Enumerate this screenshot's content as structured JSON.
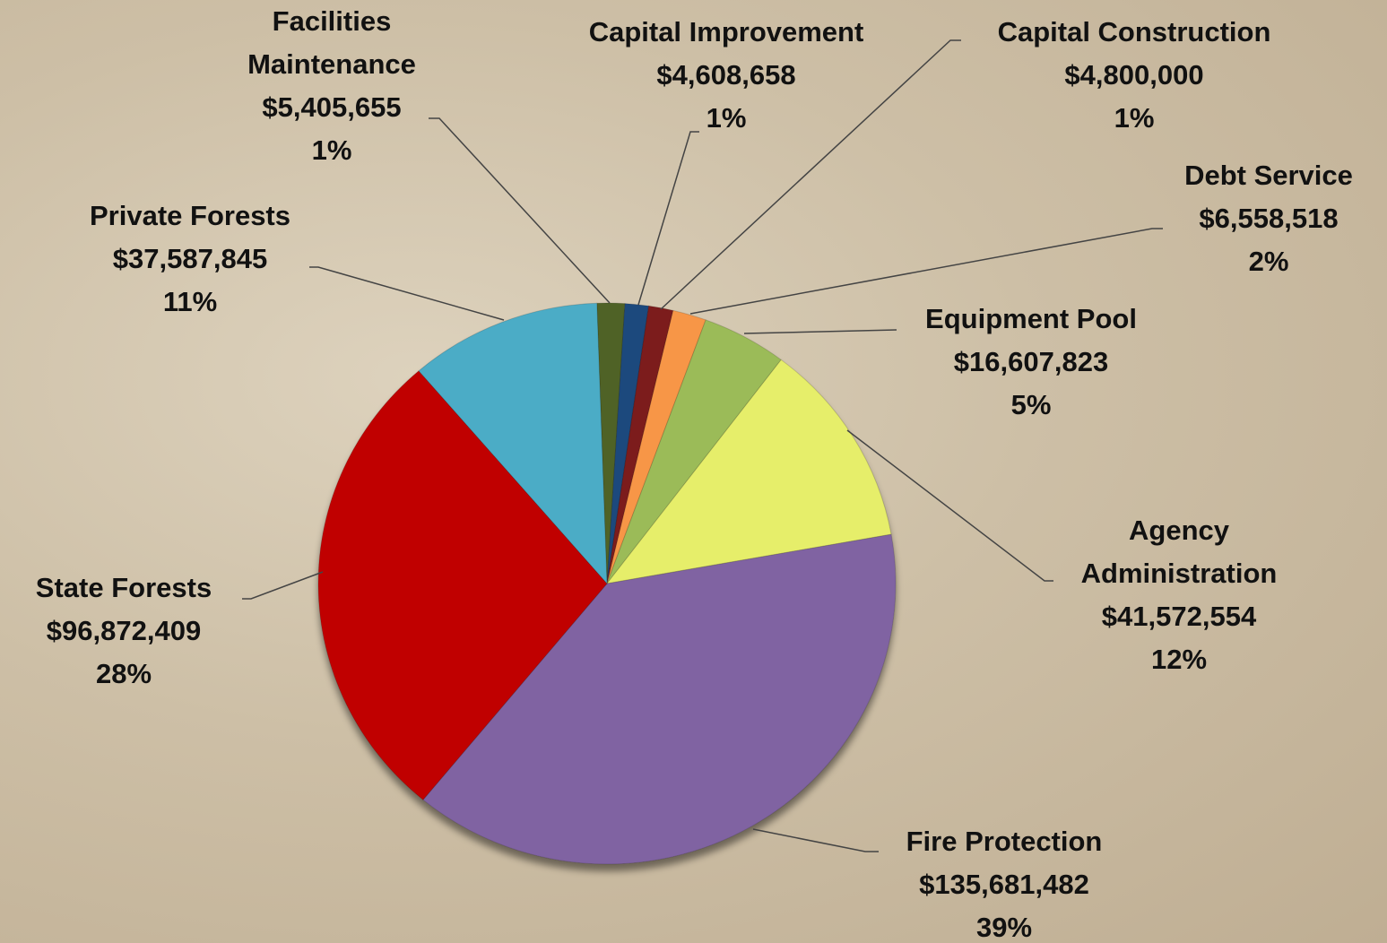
{
  "chart_data": {
    "type": "pie",
    "categories": [
      "Facilities Maintenance",
      "Capital Improvement",
      "Capital Construction",
      "Debt Service",
      "Equipment Pool",
      "Agency Administration",
      "Fire Protection",
      "State Forests",
      "Private Forests"
    ],
    "values": [
      5405655,
      4608658,
      4800000,
      6558518,
      16607823,
      41572554,
      135681482,
      96872409,
      37587845
    ],
    "value_labels": [
      "$5,405,655",
      "$4,608,658",
      "$4,800,000",
      "$6,558,518",
      "$16,607,823",
      "$41,572,554",
      "$135,681,482",
      "$96,872,409",
      "$37,587,845"
    ],
    "percent_labels": [
      "1%",
      "1%",
      "1%",
      "2%",
      "5%",
      "12%",
      "39%",
      "28%",
      "11%"
    ],
    "colors": [
      "#4f6228",
      "#1f497d",
      "#7b1b1b",
      "#f79646",
      "#9bbb59",
      "#e6ee6a",
      "#8064a2",
      "#c00000",
      "#4bacc6"
    ]
  }
}
